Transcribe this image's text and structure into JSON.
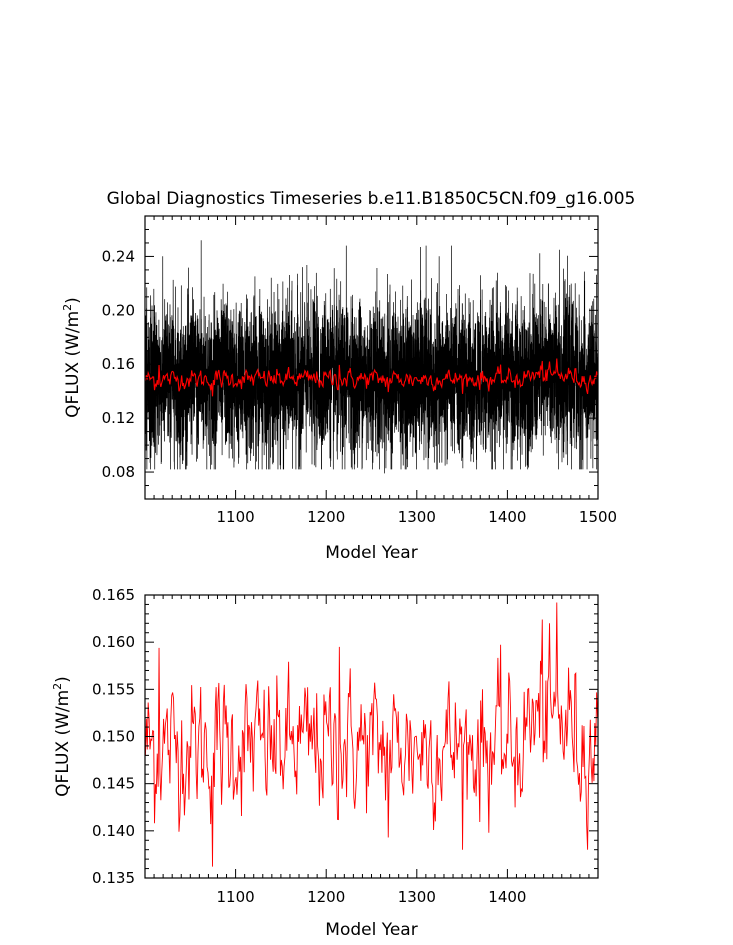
{
  "figure": {
    "title": "Global Diagnostics Timeseries b.e11.B1850C5CN.f09_g16.005"
  },
  "chart_data": [
    {
      "type": "line",
      "xlabel": "Model Year",
      "ylabel_text": "QFLUX (W/m",
      "ylabel_sup": "2",
      "ylabel_close": ")",
      "xlim": [
        1000,
        1500
      ],
      "ylim": [
        0.06,
        0.27
      ],
      "xticks": [
        1100,
        1200,
        1300,
        1400,
        1500
      ],
      "yticks": [
        0.08,
        0.12,
        0.16,
        0.2,
        0.24
      ],
      "ytick_labels": [
        "0.08",
        "0.12",
        "0.16",
        "0.20",
        "0.24"
      ],
      "grid": false,
      "series": [
        {
          "kind": "monthly",
          "color": "#000000",
          "x_start": 1000,
          "x_end": 1500,
          "mean": 0.149,
          "min": 0.079,
          "max": 0.252
        },
        {
          "kind": "annual",
          "color": "#ff0000",
          "x_start": 1000,
          "x_end": 1500,
          "mean": 0.149,
          "min": 0.136,
          "max": 0.164
        }
      ]
    },
    {
      "type": "line",
      "xlabel": "Model Year",
      "ylabel_text": "QFLUX (W/m",
      "ylabel_sup": "2",
      "ylabel_close": ")",
      "xlim": [
        1000,
        1500
      ],
      "ylim": [
        0.135,
        0.165
      ],
      "xticks": [
        1100,
        1200,
        1300,
        1400
      ],
      "yticks": [
        0.135,
        0.14,
        0.145,
        0.15,
        0.155,
        0.16,
        0.165
      ],
      "ytick_labels": [
        "0.135",
        "0.140",
        "0.145",
        "0.150",
        "0.155",
        "0.160",
        "0.165"
      ],
      "grid": false,
      "series": [
        {
          "kind": "annual",
          "color": "#ff0000",
          "x_start": 1000,
          "x_end": 1500,
          "mean": 0.149,
          "min": 0.136,
          "max": 0.164,
          "notable_points": [
            {
              "x": 1074,
              "y": 0.1362
            },
            {
              "x": 1454,
              "y": 0.1642
            },
            {
              "x": 1268,
              "y": 0.1393
            },
            {
              "x": 1379,
              "y": 0.1398
            },
            {
              "x": 1010,
              "y": 0.1408
            },
            {
              "x": 1214,
              "y": 0.1595
            },
            {
              "x": 1015,
              "y": 0.1594
            },
            {
              "x": 1438,
              "y": 0.1624
            }
          ]
        }
      ]
    }
  ]
}
